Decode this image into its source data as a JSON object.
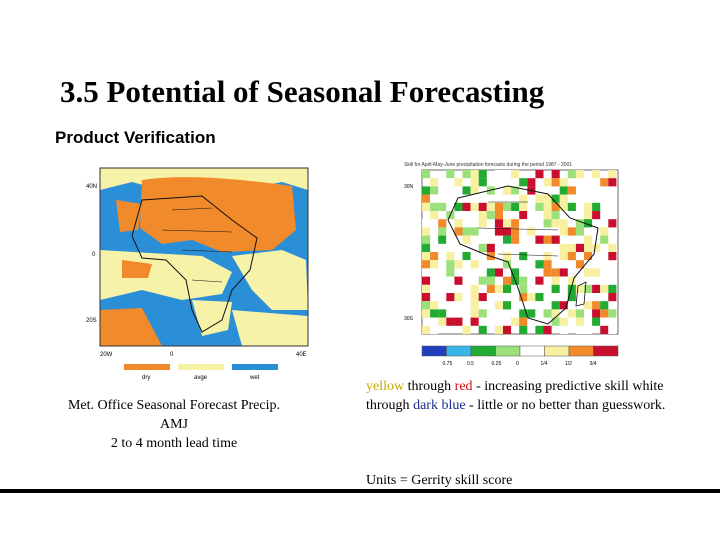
{
  "slide": {
    "title": "3.5 Potential of Seasonal Forecasting",
    "subtitle": "Product Verification"
  },
  "left_panel": {
    "map_labels": {
      "lat_top": "40N",
      "lat_mid": "0",
      "lat_bottom": "20S",
      "lon_left": "20W",
      "lon_mid": "0",
      "lon_right": "40E"
    },
    "legend": [
      "dry",
      "avge",
      "wet"
    ],
    "legend_colors": [
      "#f08a2a",
      "#f6f2a8",
      "#2b8fd8"
    ],
    "caption_lines": [
      "Met. Office Seasonal Forecast  Precip.",
      "AMJ",
      "2 to 4 month lead time"
    ]
  },
  "right_panel": {
    "map_title": "Skill for April-May-June precipitation forecasts during the period 1987 - 2001",
    "map_labels": {
      "lat_top": "30N",
      "lat_bottom": "30S"
    },
    "colorbar_colors": [
      "#1f3fbf",
      "#38b6e8",
      "#22aa33",
      "#9be07a",
      "#ffffff",
      "#f7f0a0",
      "#f08a2a",
      "#c8102e"
    ],
    "colorbar_ticks": [
      "0.75",
      "0.5",
      "0.25",
      "0",
      "1/4",
      "1/2",
      "3/4"
    ],
    "description": {
      "yellow": "yellow",
      "part1": " through ",
      "red": "red",
      "part2": " - increasing predictive skill white through ",
      "dark_blue": "dark blue",
      "part3": " - little or no better than guesswork."
    },
    "units": "Units = Gerrity skill score"
  }
}
